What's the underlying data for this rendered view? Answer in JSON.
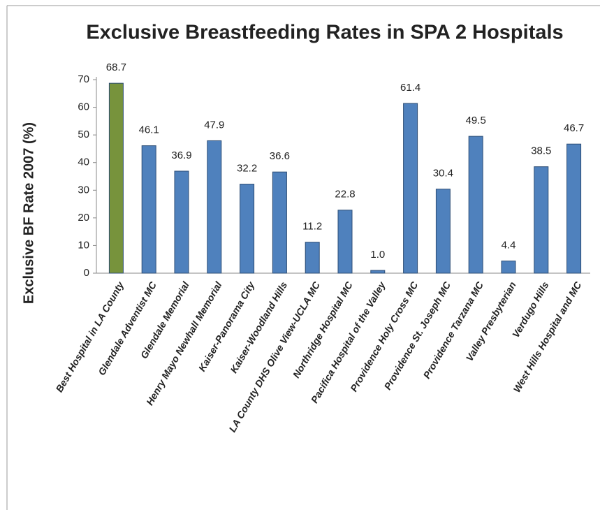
{
  "chart_data": {
    "type": "bar",
    "title": "Exclusive Breastfeeding Rates in SPA 2 Hospitals",
    "y_label": "Exclusive BF Rate 2007 (%)",
    "categories": [
      "Best Hospital in LA County",
      "Glendale Adventist MC",
      "Glendale Memorial",
      "Henry Mayo Newhall Memorial",
      "Kaiser-Panorama City",
      "Kaiser-Woodland Hills",
      "LA County DHS Olive View-UCLA MC",
      "Northridge Hospital MC",
      "Pacifica Hospital of the Valley",
      "Providence Holy Cross MC",
      "Providence St. Joseph MC",
      "Providence Tarzana MC",
      "Valley Presbyterian",
      "Verdugo Hills",
      "West Hills Hospital and MC"
    ],
    "values": [
      68.7,
      46.1,
      36.9,
      47.9,
      32.2,
      36.6,
      11.2,
      22.8,
      1.0,
      61.4,
      30.4,
      49.5,
      4.4,
      38.5,
      46.7
    ],
    "value_labels": [
      "68.7",
      "46.1",
      "36.9",
      "47.9",
      "32.2",
      "36.6",
      "11.2",
      "22.8",
      "1.0",
      "61.4",
      "30.4",
      "49.5",
      "4.4",
      "38.5",
      "46.7"
    ],
    "colors": [
      "#77933c",
      "#4f81bd",
      "#4f81bd",
      "#4f81bd",
      "#4f81bd",
      "#4f81bd",
      "#4f81bd",
      "#4f81bd",
      "#4f81bd",
      "#4f81bd",
      "#4f81bd",
      "#4f81bd",
      "#4f81bd",
      "#4f81bd",
      "#4f81bd"
    ],
    "ylim": [
      0,
      70
    ],
    "yticks": [
      0,
      10,
      20,
      30,
      40,
      50,
      60,
      70
    ],
    "grid": false
  }
}
